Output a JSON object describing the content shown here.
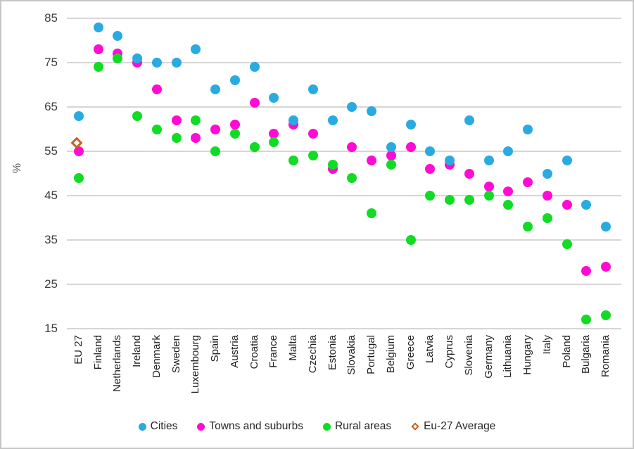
{
  "chart_data": {
    "type": "scatter",
    "title": "",
    "xlabel": "",
    "ylabel": "%",
    "ylim": [
      15,
      85
    ],
    "yticks": [
      85,
      75,
      65,
      55,
      45,
      35,
      25,
      15
    ],
    "grid": "horizontal",
    "legend_position": "bottom",
    "categories": [
      "EU 27",
      "Finland",
      "Netherlands",
      "Ireland",
      "Denmark",
      "Sweden",
      "Luxembourg",
      "Spain",
      "Austria",
      "Croatia",
      "France",
      "Malta",
      "Czechia",
      "Estonia",
      "Slovakia",
      "Portugal",
      "Belgium",
      "Greece",
      "Latvia",
      "Cyprus",
      "Slovenia",
      "Germany",
      "Lithuania",
      "Hungary",
      "Italy",
      "Poland",
      "Bulgaria",
      "Romania"
    ],
    "series": [
      {
        "name": "Cities",
        "marker": "circle",
        "color": "#29abe2",
        "values": [
          63,
          83,
          81,
          76,
          75,
          75,
          78,
          69,
          71,
          74,
          67,
          62,
          69,
          62,
          65,
          64,
          56,
          61,
          55,
          53,
          62,
          53,
          55,
          60,
          50,
          53,
          43,
          38
        ]
      },
      {
        "name": "Towns and suburbs",
        "marker": "circle",
        "color": "#ff0bd5",
        "values": [
          55,
          78,
          77,
          75,
          69,
          62,
          58,
          60,
          61,
          66,
          59,
          61,
          59,
          51,
          56,
          53,
          54,
          56,
          51,
          52,
          50,
          47,
          46,
          48,
          45,
          43,
          28,
          29
        ]
      },
      {
        "name": "Rural areas",
        "marker": "circle",
        "color": "#10dc23",
        "values": [
          49,
          74,
          76,
          63,
          60,
          58,
          62,
          55,
          59,
          56,
          57,
          53,
          54,
          52,
          49,
          41,
          52,
          35,
          45,
          44,
          44,
          45,
          43,
          38,
          40,
          34,
          17,
          18
        ]
      },
      {
        "name": "Eu-27 Average",
        "marker": "diamond-outline",
        "color": "#c9611a",
        "values": [
          56.4,
          null,
          null,
          null,
          null,
          null,
          null,
          null,
          null,
          null,
          null,
          null,
          null,
          null,
          null,
          null,
          null,
          null,
          null,
          null,
          null,
          null,
          null,
          null,
          null,
          null,
          null,
          null
        ]
      }
    ]
  },
  "colors": {
    "gridline": "#d6d6d6",
    "tick_label": "#3f3f3f",
    "axis_label": "#595959",
    "category_label": "#1f1f1f",
    "legend_text": "#262626",
    "frame_border": "#c6c6c6",
    "background": "#ffffff"
  }
}
